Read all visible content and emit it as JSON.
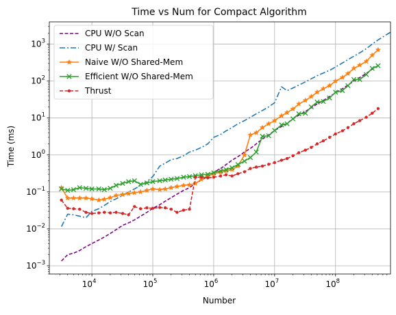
{
  "chart_data": {
    "type": "line",
    "title": "Time vs Num for Compact Algorithm",
    "xlabel": "Number",
    "ylabel": "Time (ms)",
    "x_scale": "log",
    "y_scale": "log",
    "xlim": [
      2000,
      800000000
    ],
    "ylim": [
      0.0006,
      4000
    ],
    "grid": true,
    "legend_position": "top-left",
    "x_ticks": [
      {
        "value": 10000,
        "base": "10",
        "exp": "4"
      },
      {
        "value": 100000,
        "base": "10",
        "exp": "5"
      },
      {
        "value": 1000000,
        "base": "10",
        "exp": "6"
      },
      {
        "value": 10000000,
        "base": "10",
        "exp": "7"
      },
      {
        "value": 100000000,
        "base": "10",
        "exp": "8"
      }
    ],
    "y_ticks": [
      {
        "value": 0.001,
        "base": "10",
        "exp": "−3"
      },
      {
        "value": 0.01,
        "base": "10",
        "exp": "−2"
      },
      {
        "value": 0.1,
        "base": "10",
        "exp": "−1"
      },
      {
        "value": 1,
        "base": "10",
        "exp": "0"
      },
      {
        "value": 10,
        "base": "10",
        "exp": "1"
      },
      {
        "value": 100,
        "base": "10",
        "exp": "2"
      },
      {
        "value": 1000,
        "base": "10",
        "exp": "3"
      }
    ],
    "series": [
      {
        "name": "CPU W/O Scan",
        "color": "#800080",
        "dash": "dashed",
        "marker": "none",
        "points": [
          [
            3162,
            0.00135
          ],
          [
            4000,
            0.002
          ],
          [
            5000,
            0.0022
          ],
          [
            6300,
            0.0026
          ],
          [
            8000,
            0.0033
          ],
          [
            10000,
            0.004
          ],
          [
            13000,
            0.005
          ],
          [
            16000,
            0.006
          ],
          [
            20000,
            0.0075
          ],
          [
            25000,
            0.0095
          ],
          [
            32000,
            0.0125
          ],
          [
            40000,
            0.0145
          ],
          [
            50000,
            0.0175
          ],
          [
            63000,
            0.022
          ],
          [
            80000,
            0.028
          ],
          [
            100000,
            0.036
          ],
          [
            130000,
            0.045
          ],
          [
            160000,
            0.056
          ],
          [
            200000,
            0.07
          ],
          [
            250000,
            0.087
          ],
          [
            320000,
            0.11
          ],
          [
            400000,
            0.13
          ],
          [
            500000,
            0.17
          ],
          [
            630000,
            0.21
          ],
          [
            800000,
            0.26
          ],
          [
            1000000,
            0.34
          ],
          [
            1300000,
            0.43
          ],
          [
            1600000,
            0.55
          ],
          [
            2000000,
            0.72
          ],
          [
            2500000,
            0.9
          ],
          [
            3200000,
            1.2
          ],
          [
            4000000,
            1.5
          ],
          [
            5000000,
            2.0
          ],
          [
            6300000,
            2.7
          ],
          [
            8000000,
            3.5
          ],
          [
            10000000,
            4.6
          ],
          [
            13000000,
            5.9
          ],
          [
            16000000,
            7.2
          ],
          [
            20000000,
            9.5
          ],
          [
            25000000,
            12
          ],
          [
            32000000,
            15
          ],
          [
            40000000,
            19
          ],
          [
            50000000,
            24
          ],
          [
            63000000,
            30
          ],
          [
            80000000,
            38
          ],
          [
            100000000,
            48
          ],
          [
            130000000,
            62
          ],
          [
            160000000,
            78
          ],
          [
            200000000,
            100
          ],
          [
            250000000,
            125
          ],
          [
            320000000,
            160
          ],
          [
            400000000,
            210
          ],
          [
            500000000,
            260
          ]
        ]
      },
      {
        "name": "CPU W/ Scan",
        "color": "#1f77b4",
        "dash": "dashdot",
        "marker": "none",
        "points": [
          [
            3162,
            0.0115
          ],
          [
            4000,
            0.025
          ],
          [
            5000,
            0.024
          ],
          [
            6300,
            0.022
          ],
          [
            8000,
            0.02
          ],
          [
            10000,
            0.03
          ],
          [
            13000,
            0.035
          ],
          [
            16000,
            0.043
          ],
          [
            20000,
            0.055
          ],
          [
            25000,
            0.065
          ],
          [
            32000,
            0.08
          ],
          [
            40000,
            0.1
          ],
          [
            50000,
            0.12
          ],
          [
            63000,
            0.15
          ],
          [
            80000,
            0.19
          ],
          [
            100000,
            0.26
          ],
          [
            130000,
            0.5
          ],
          [
            160000,
            0.6
          ],
          [
            200000,
            0.75
          ],
          [
            250000,
            0.8
          ],
          [
            320000,
            0.95
          ],
          [
            400000,
            1.2
          ],
          [
            500000,
            1.35
          ],
          [
            630000,
            1.6
          ],
          [
            800000,
            2.0
          ],
          [
            1000000,
            3.0
          ],
          [
            1300000,
            3.6
          ],
          [
            1600000,
            4.5
          ],
          [
            2000000,
            5.5
          ],
          [
            2500000,
            7
          ],
          [
            3200000,
            8.5
          ],
          [
            4000000,
            10.5
          ],
          [
            5000000,
            13
          ],
          [
            6300000,
            16
          ],
          [
            8000000,
            20
          ],
          [
            10000000,
            26
          ],
          [
            13000000,
            70
          ],
          [
            16000000,
            55
          ],
          [
            20000000,
            65
          ],
          [
            25000000,
            78
          ],
          [
            32000000,
            95
          ],
          [
            40000000,
            115
          ],
          [
            50000000,
            140
          ],
          [
            63000000,
            165
          ],
          [
            80000000,
            195
          ],
          [
            100000000,
            240
          ],
          [
            130000000,
            310
          ],
          [
            160000000,
            380
          ],
          [
            200000000,
            470
          ],
          [
            250000000,
            580
          ],
          [
            320000000,
            750
          ],
          [
            400000000,
            1000
          ],
          [
            500000000,
            1300
          ],
          [
            630000000,
            1650
          ],
          [
            800000000,
            2100
          ]
        ]
      },
      {
        "name": "Naive W/O Shared-Mem",
        "color": "#ff7f0e",
        "dash": "solid",
        "marker": "star",
        "points": [
          [
            3162,
            0.13
          ],
          [
            4000,
            0.068
          ],
          [
            5000,
            0.068
          ],
          [
            6300,
            0.068
          ],
          [
            8000,
            0.068
          ],
          [
            10000,
            0.065
          ],
          [
            13000,
            0.06
          ],
          [
            16000,
            0.063
          ],
          [
            20000,
            0.07
          ],
          [
            25000,
            0.08
          ],
          [
            32000,
            0.085
          ],
          [
            40000,
            0.09
          ],
          [
            50000,
            0.095
          ],
          [
            63000,
            0.1
          ],
          [
            80000,
            0.11
          ],
          [
            100000,
            0.12
          ],
          [
            130000,
            0.115
          ],
          [
            160000,
            0.12
          ],
          [
            200000,
            0.13
          ],
          [
            250000,
            0.14
          ],
          [
            320000,
            0.15
          ],
          [
            400000,
            0.155
          ],
          [
            500000,
            0.17
          ],
          [
            630000,
            0.22
          ],
          [
            800000,
            0.27
          ],
          [
            1000000,
            0.31
          ],
          [
            1300000,
            0.34
          ],
          [
            1600000,
            0.37
          ],
          [
            2000000,
            0.4
          ],
          [
            2500000,
            0.5
          ],
          [
            3200000,
            1.0
          ],
          [
            4000000,
            3.5
          ],
          [
            5000000,
            4.0
          ],
          [
            6300000,
            5.5
          ],
          [
            8000000,
            7.0
          ],
          [
            10000000,
            8.5
          ],
          [
            13000000,
            11.5
          ],
          [
            16000000,
            14
          ],
          [
            20000000,
            17.5
          ],
          [
            25000000,
            24
          ],
          [
            32000000,
            30
          ],
          [
            40000000,
            38
          ],
          [
            50000000,
            50
          ],
          [
            63000000,
            62
          ],
          [
            80000000,
            75
          ],
          [
            100000000,
            100
          ],
          [
            130000000,
            125
          ],
          [
            160000000,
            160
          ],
          [
            200000000,
            220
          ],
          [
            250000000,
            270
          ],
          [
            320000000,
            340
          ],
          [
            400000000,
            500
          ],
          [
            500000000,
            700
          ]
        ]
      },
      {
        "name": "Efficient W/O Shared-Mem",
        "color": "#2ca02c",
        "dash": "solid",
        "marker": "x",
        "points": [
          [
            3162,
            0.12
          ],
          [
            4000,
            0.11
          ],
          [
            5000,
            0.115
          ],
          [
            6300,
            0.13
          ],
          [
            8000,
            0.125
          ],
          [
            10000,
            0.12
          ],
          [
            13000,
            0.12
          ],
          [
            16000,
            0.115
          ],
          [
            20000,
            0.125
          ],
          [
            25000,
            0.15
          ],
          [
            32000,
            0.17
          ],
          [
            40000,
            0.19
          ],
          [
            50000,
            0.2
          ],
          [
            63000,
            0.16
          ],
          [
            80000,
            0.175
          ],
          [
            100000,
            0.19
          ],
          [
            130000,
            0.2
          ],
          [
            160000,
            0.21
          ],
          [
            200000,
            0.22
          ],
          [
            250000,
            0.23
          ],
          [
            320000,
            0.25
          ],
          [
            400000,
            0.26
          ],
          [
            500000,
            0.275
          ],
          [
            630000,
            0.29
          ],
          [
            800000,
            0.3
          ],
          [
            1000000,
            0.33
          ],
          [
            1300000,
            0.37
          ],
          [
            1600000,
            0.4
          ],
          [
            2000000,
            0.45
          ],
          [
            2500000,
            0.55
          ],
          [
            3200000,
            0.68
          ],
          [
            4000000,
            0.85
          ],
          [
            5000000,
            1.2
          ],
          [
            6300000,
            3.2
          ],
          [
            8000000,
            3.3
          ],
          [
            10000000,
            4.6
          ],
          [
            13000000,
            6.5
          ],
          [
            16000000,
            7
          ],
          [
            20000000,
            9.5
          ],
          [
            25000000,
            13
          ],
          [
            32000000,
            13.5
          ],
          [
            40000000,
            20
          ],
          [
            50000000,
            27
          ],
          [
            63000000,
            28
          ],
          [
            80000000,
            35
          ],
          [
            100000000,
            50
          ],
          [
            130000000,
            55
          ],
          [
            160000000,
            75
          ],
          [
            200000000,
            110
          ],
          [
            250000000,
            110
          ],
          [
            320000000,
            150
          ],
          [
            400000000,
            220
          ],
          [
            500000000,
            260
          ]
        ]
      },
      {
        "name": "Thrust",
        "color": "#d62728",
        "dash": "dashed",
        "marker": "dot",
        "points": [
          [
            3162,
            0.06
          ],
          [
            4000,
            0.036
          ],
          [
            5000,
            0.035
          ],
          [
            6300,
            0.034
          ],
          [
            8000,
            0.028
          ],
          [
            10000,
            0.026
          ],
          [
            13000,
            0.027
          ],
          [
            16000,
            0.028
          ],
          [
            20000,
            0.027
          ],
          [
            25000,
            0.028
          ],
          [
            32000,
            0.026
          ],
          [
            40000,
            0.024
          ],
          [
            50000,
            0.04
          ],
          [
            63000,
            0.035
          ],
          [
            80000,
            0.037
          ],
          [
            100000,
            0.036
          ],
          [
            130000,
            0.038
          ],
          [
            160000,
            0.037
          ],
          [
            200000,
            0.034
          ],
          [
            250000,
            0.028
          ],
          [
            320000,
            0.032
          ],
          [
            400000,
            0.034
          ],
          [
            500000,
            0.25
          ],
          [
            630000,
            0.25
          ],
          [
            800000,
            0.24
          ],
          [
            1000000,
            0.25
          ],
          [
            1300000,
            0.27
          ],
          [
            1600000,
            0.29
          ],
          [
            2000000,
            0.27
          ],
          [
            2500000,
            0.31
          ],
          [
            3200000,
            0.35
          ],
          [
            4000000,
            0.43
          ],
          [
            5000000,
            0.47
          ],
          [
            6300000,
            0.5
          ],
          [
            8000000,
            0.56
          ],
          [
            10000000,
            0.62
          ],
          [
            13000000,
            0.72
          ],
          [
            16000000,
            0.8
          ],
          [
            20000000,
            0.95
          ],
          [
            25000000,
            1.15
          ],
          [
            32000000,
            1.35
          ],
          [
            40000000,
            1.6
          ],
          [
            50000000,
            2.0
          ],
          [
            63000000,
            2.4
          ],
          [
            80000000,
            3.0
          ],
          [
            100000000,
            3.7
          ],
          [
            130000000,
            4.5
          ],
          [
            160000000,
            5.5
          ],
          [
            200000000,
            7.0
          ],
          [
            250000000,
            8.5
          ],
          [
            320000000,
            10.5
          ],
          [
            400000000,
            13.5
          ],
          [
            500000000,
            18
          ]
        ]
      }
    ]
  }
}
